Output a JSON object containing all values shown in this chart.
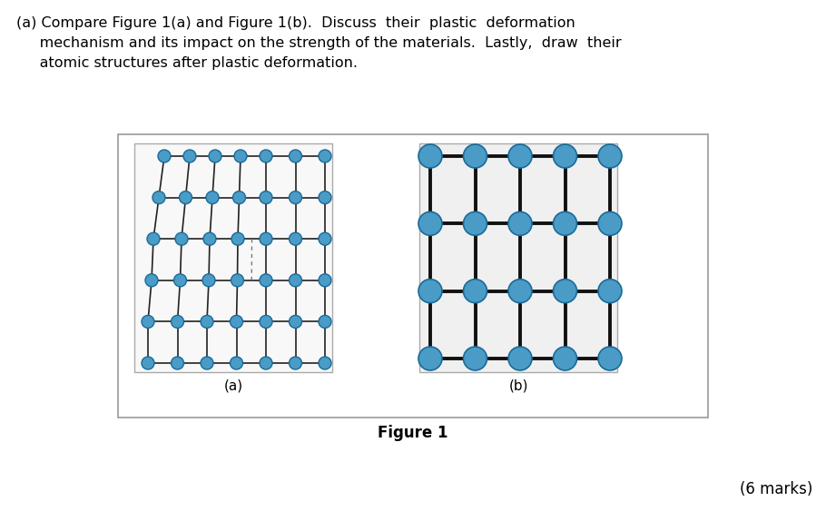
{
  "bg_color": "#ffffff",
  "atom_color": "#4a9cc7",
  "atom_edge_color": "#1a6a99",
  "line_color": "#222222",
  "line_color_b": "#111111",
  "title": "Figure 1",
  "label_a": "(a)",
  "label_b": "(b)",
  "q_line1": "(a) Compare Figure 1(a) and Figure 1(b).  Discuss  their  plastic  deformation",
  "q_line2": "     mechanism and its impact on the strength of the materials.  Lastly,  draw  their",
  "q_line3": "     atomic structures after plastic deformation.",
  "marks_text": "(6 marks)",
  "font_size_q": 11.5,
  "font_size_label": 11,
  "font_size_title": 12,
  "font_size_marks": 12
}
